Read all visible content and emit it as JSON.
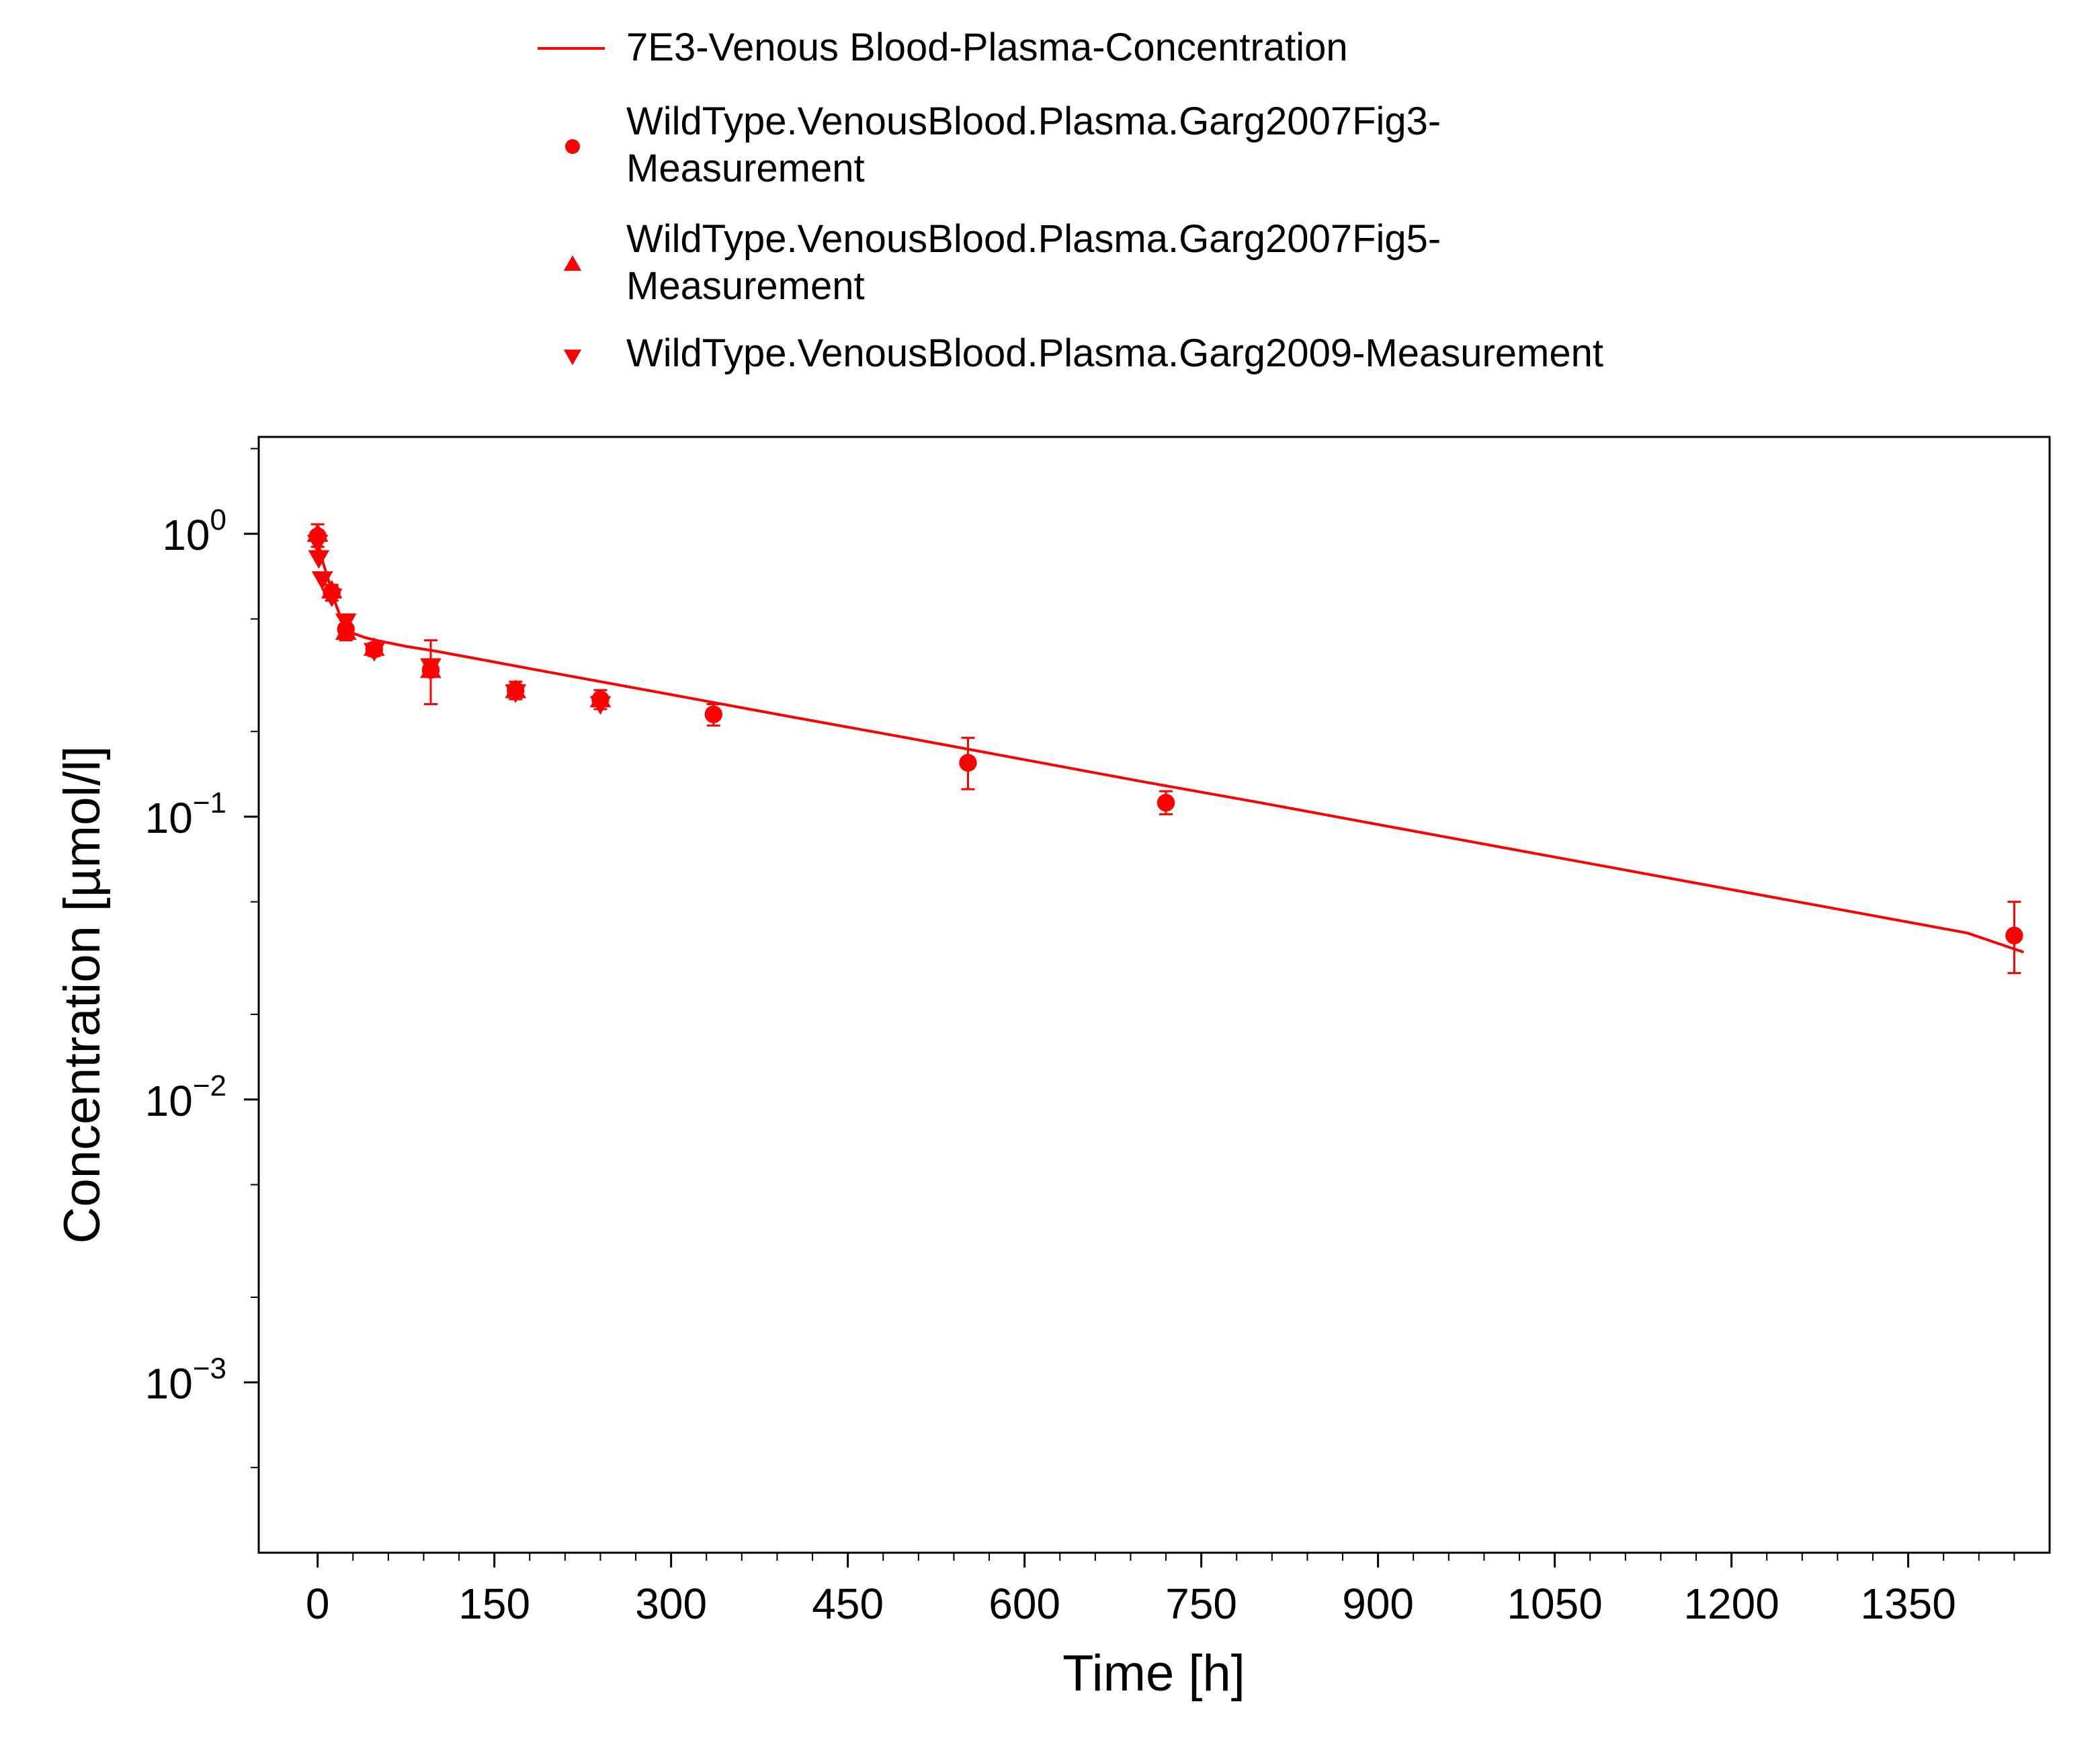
{
  "chart_data": {
    "type": "line",
    "title": "",
    "xlabel": "Time [h]",
    "ylabel": "Concentration [µmol/l]",
    "y_scale": "log",
    "xlim": [
      -50,
      1470
    ],
    "ylim": [
      0.00025,
      2.2
    ],
    "grid": false,
    "legend_position": "top",
    "x_ticks": [
      0,
      150,
      300,
      450,
      600,
      750,
      900,
      1050,
      1200,
      1350
    ],
    "x_tick_labels": [
      "0",
      "150",
      "300",
      "450",
      "600",
      "750",
      "900",
      "1050",
      "1200",
      "1350"
    ],
    "y_ticks": [
      1,
      0.1,
      0.01,
      0.001
    ],
    "y_tick_labels": [
      {
        "base": "10",
        "exp": "0"
      },
      {
        "base": "10",
        "exp": "−1"
      },
      {
        "base": "10",
        "exp": "−2"
      },
      {
        "base": "10",
        "exp": "−3"
      }
    ],
    "color": "#ff0000",
    "series": [
      {
        "name": "7E3-Venous Blood-Plasma-Concentration",
        "kind": "line",
        "x": [
          0,
          2,
          5,
          10,
          15,
          20,
          25,
          30,
          40,
          50,
          75,
          100,
          150,
          200,
          300,
          400,
          500,
          600,
          700,
          800,
          900,
          1000,
          1100,
          1200,
          1300,
          1400,
          1448
        ],
        "y": [
          0.97,
          0.87,
          0.78,
          0.67,
          0.57,
          0.5,
          0.465,
          0.445,
          0.43,
          0.42,
          0.4,
          0.385,
          0.352,
          0.322,
          0.27,
          0.226,
          0.19,
          0.159,
          0.133,
          0.112,
          0.0938,
          0.0786,
          0.0659,
          0.0552,
          0.0463,
          0.0388,
          0.0332
        ]
      },
      {
        "name": "WildType.VenousBlood.Plasma.Garg2007Fig3-Measurement",
        "kind": "points",
        "marker": "circle",
        "points": [
          {
            "x": 0,
            "y": 0.98,
            "err_low": 0.9,
            "err_high": 1.08
          },
          {
            "x": 12,
            "y": 0.62,
            "err_low": 0.58,
            "err_high": 0.66
          },
          {
            "x": 24,
            "y": 0.46,
            "err_low": 0.42,
            "err_high": 0.5
          },
          {
            "x": 48,
            "y": 0.39,
            "err_low": 0.37,
            "err_high": 0.41
          },
          {
            "x": 96,
            "y": 0.33,
            "err_low": 0.25,
            "err_high": 0.42
          },
          {
            "x": 168,
            "y": 0.28,
            "err_low": 0.26,
            "err_high": 0.3
          },
          {
            "x": 240,
            "y": 0.26,
            "err_low": 0.24,
            "err_high": 0.28
          },
          {
            "x": 336,
            "y": 0.23,
            "err_low": 0.21,
            "err_high": 0.25
          },
          {
            "x": 552,
            "y": 0.155,
            "err_low": 0.125,
            "err_high": 0.19
          },
          {
            "x": 720,
            "y": 0.112,
            "err_low": 0.102,
            "err_high": 0.123
          },
          {
            "x": 1440,
            "y": 0.038,
            "err_low": 0.028,
            "err_high": 0.05
          }
        ]
      },
      {
        "name": "WildType.VenousBlood.Plasma.Garg2007Fig5-Measurement",
        "kind": "points",
        "marker": "triangle-up",
        "points": [
          {
            "x": 0,
            "y": 1.0
          },
          {
            "x": 12,
            "y": 0.63
          },
          {
            "x": 24,
            "y": 0.45
          },
          {
            "x": 48,
            "y": 0.395
          },
          {
            "x": 96,
            "y": 0.33
          },
          {
            "x": 168,
            "y": 0.28
          },
          {
            "x": 240,
            "y": 0.26
          }
        ]
      },
      {
        "name": "WildType.VenousBlood.Plasma.Garg2009-Measurement",
        "kind": "points",
        "marker": "triangle-down",
        "points": [
          {
            "x": 0,
            "y": 0.93
          },
          {
            "x": 1,
            "y": 0.82
          },
          {
            "x": 4,
            "y": 0.69
          },
          {
            "x": 12,
            "y": 0.6
          },
          {
            "x": 24,
            "y": 0.49
          },
          {
            "x": 48,
            "y": 0.385
          },
          {
            "x": 96,
            "y": 0.34
          },
          {
            "x": 168,
            "y": 0.275
          },
          {
            "x": 240,
            "y": 0.25
          }
        ]
      }
    ]
  }
}
